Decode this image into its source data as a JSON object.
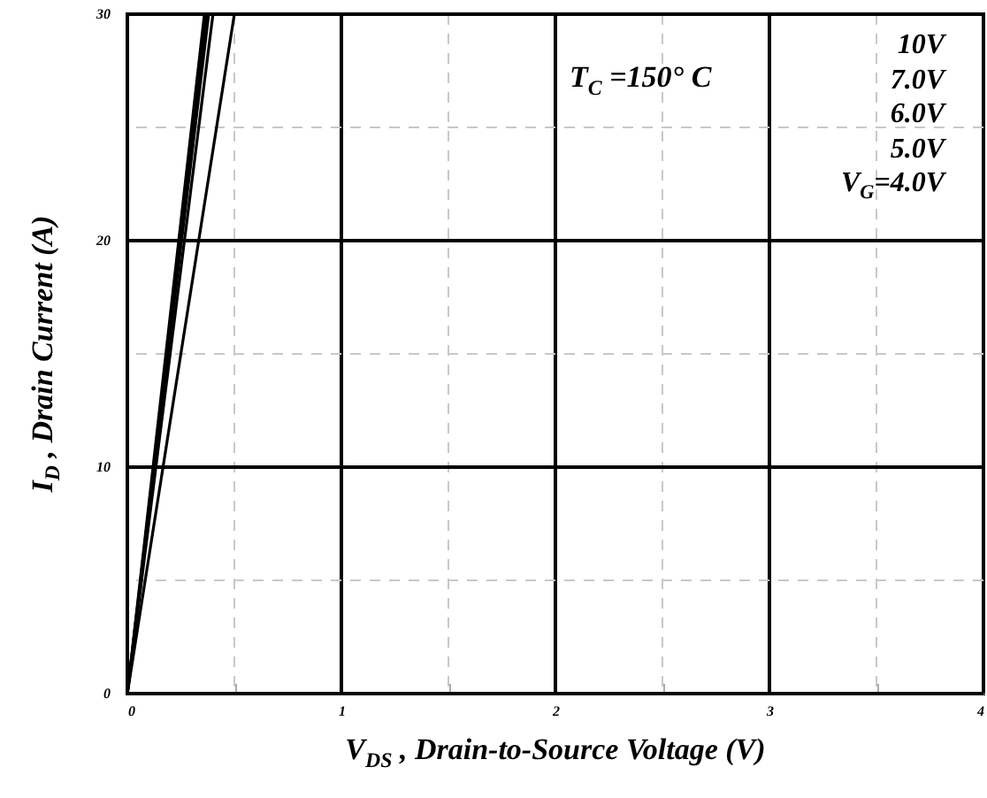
{
  "chart_data": {
    "type": "line",
    "xlabel": "V$_{DS}$ , Drain-to-Source Voltage (V)",
    "ylabel": "I$_{D}$ , Drain Current (A)",
    "annotations": [
      "T$_{C}$ =150° C"
    ],
    "xlim": [
      0,
      4
    ],
    "ylim": [
      0,
      30
    ],
    "xticks": [
      0,
      {
        "value": 0.5,
        "label": null
      },
      1,
      {
        "value": 1.5,
        "label": null
      },
      2,
      {
        "value": 2.5,
        "label": null
      },
      3,
      {
        "value": 3.5,
        "label": null
      },
      4
    ],
    "yticks": [
      0,
      {
        "value": 5,
        "label": null
      },
      10,
      {
        "value": 15,
        "label": null
      },
      20,
      {
        "value": 25,
        "label": null
      },
      30
    ],
    "grid": true,
    "legend": "top right",
    "line_style": "solid",
    "series": [
      {
        "name": "10V",
        "color": "#000000",
        "x": [
          0,
          0.36
        ],
        "values": [
          0,
          30
        ]
      },
      {
        "name": "7.0V",
        "color": "#000000",
        "x": [
          0,
          0.37
        ],
        "values": [
          0,
          30
        ]
      },
      {
        "name": "6.0V",
        "color": "#000000",
        "x": [
          0,
          0.38
        ],
        "values": [
          0,
          30
        ]
      },
      {
        "name": "5.0V",
        "color": "#000000",
        "x": [
          0,
          0.4
        ],
        "values": [
          0,
          30
        ]
      },
      {
        "name": "V$_{G}$=4.0V",
        "color": "#000000",
        "x": [
          0,
          0.5
        ],
        "values": [
          0,
          30
        ]
      }
    ]
  }
}
